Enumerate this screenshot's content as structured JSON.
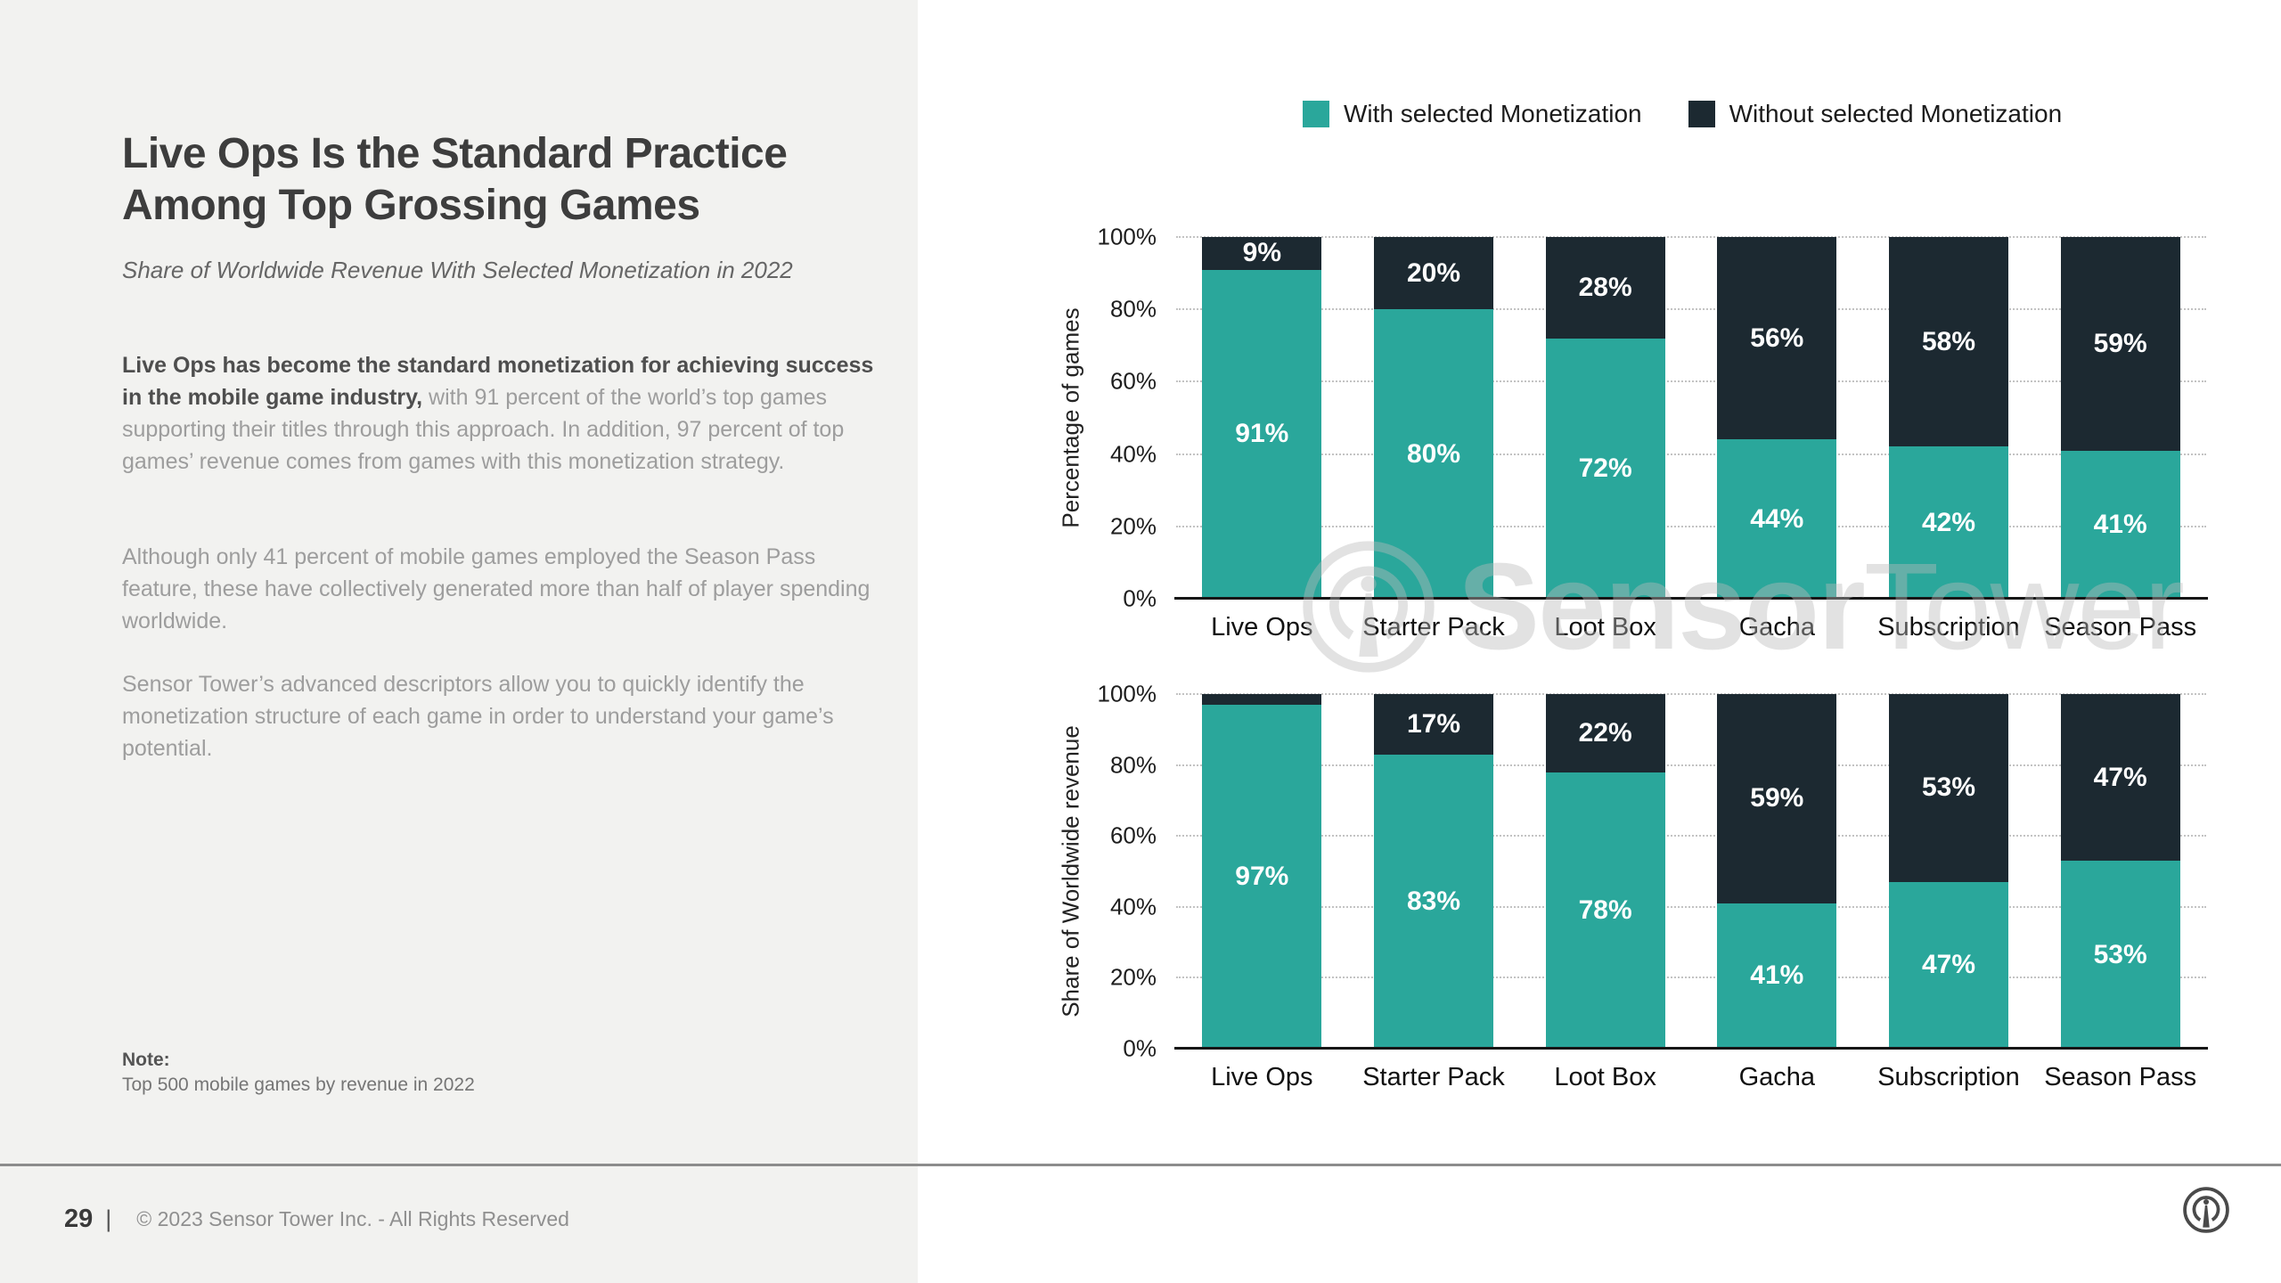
{
  "page": {
    "left_panel": {
      "title": "Live Ops Is the Standard Practice Among Top Grossing Games",
      "subtitle": "Share of Worldwide Revenue With Selected Monetization in 2022",
      "paragraph1_bold": "Live Ops has become the standard monetization for achieving success in the mobile game industry,",
      "paragraph1_rest": " with 91 percent of the world’s top games supporting their titles through this approach. In addition, 97 percent of top games’ revenue comes from games with this monetization strategy.",
      "paragraph2": "Although only 41 percent of mobile games employed the Season Pass feature, these have collectively generated more than half of player spending worldwide.",
      "paragraph3": "Sensor Tower’s advanced descriptors allow you to quickly identify the monetization structure of each game in order to understand your game’s potential.",
      "note_label": "Note:",
      "note_text": "Top 500 mobile games by revenue in 2022"
    },
    "footer": {
      "page_number": "29",
      "separator": "|",
      "copyright": "© 2023 Sensor Tower Inc. - All Rights Reserved"
    },
    "legend": {
      "items": [
        {
          "label": "With selected Monetization",
          "color": "#2aa79b"
        },
        {
          "label": "Without selected Monetization",
          "color": "#1c2931"
        }
      ]
    },
    "watermark": {
      "part1": "Sensor",
      "part2": "Tower"
    },
    "colors": {
      "teal": "#2aa79b",
      "dark_navy": "#1c2931",
      "left_panel_bg": "#f2f2f0"
    }
  },
  "chart_data": [
    {
      "type": "bar",
      "stacked": true,
      "title": "",
      "xlabel": "",
      "ylabel": "Percentage of games",
      "categories": [
        "Live Ops",
        "Starter Pack",
        "Loot Box",
        "Gacha",
        "Subscription",
        "Season Pass"
      ],
      "series": [
        {
          "name": "With selected Monetization",
          "color": "#2aa79b",
          "values": [
            91,
            80,
            72,
            44,
            42,
            41
          ],
          "labels": [
            "91%",
            "80%",
            "72%",
            "44%",
            "42%",
            "41%"
          ]
        },
        {
          "name": "Without selected Monetization",
          "color": "#1c2931",
          "values": [
            9,
            20,
            28,
            56,
            58,
            59
          ],
          "labels": [
            "9%",
            "20%",
            "28%",
            "56%",
            "58%",
            "59%"
          ]
        }
      ],
      "yticks": [
        "0%",
        "20%",
        "40%",
        "60%",
        "80%",
        "100%"
      ],
      "tick_values": [
        0,
        20,
        40,
        60,
        80,
        100
      ],
      "ylim": [
        0,
        100
      ],
      "grid": "dotted-horizontal",
      "legend_position": "top"
    },
    {
      "type": "bar",
      "stacked": true,
      "title": "",
      "xlabel": "",
      "ylabel": "Share of Worldwide revenue",
      "categories": [
        "Live Ops",
        "Starter Pack",
        "Loot Box",
        "Gacha",
        "Subscription",
        "Season Pass"
      ],
      "series": [
        {
          "name": "With selected Monetization",
          "color": "#2aa79b",
          "values": [
            97,
            83,
            78,
            41,
            47,
            53
          ],
          "labels": [
            "97%",
            "83%",
            "78%",
            "41%",
            "47%",
            "53%"
          ]
        },
        {
          "name": "Without selected Monetization",
          "color": "#1c2931",
          "values": [
            3,
            17,
            22,
            59,
            53,
            47
          ],
          "labels": [
            "",
            "17%",
            "22%",
            "59%",
            "53%",
            "47%"
          ]
        }
      ],
      "yticks": [
        "0%",
        "20%",
        "40%",
        "60%",
        "80%",
        "100%"
      ],
      "tick_values": [
        0,
        20,
        40,
        60,
        80,
        100
      ],
      "ylim": [
        0,
        100
      ],
      "grid": "dotted-horizontal",
      "legend_position": "top"
    }
  ]
}
